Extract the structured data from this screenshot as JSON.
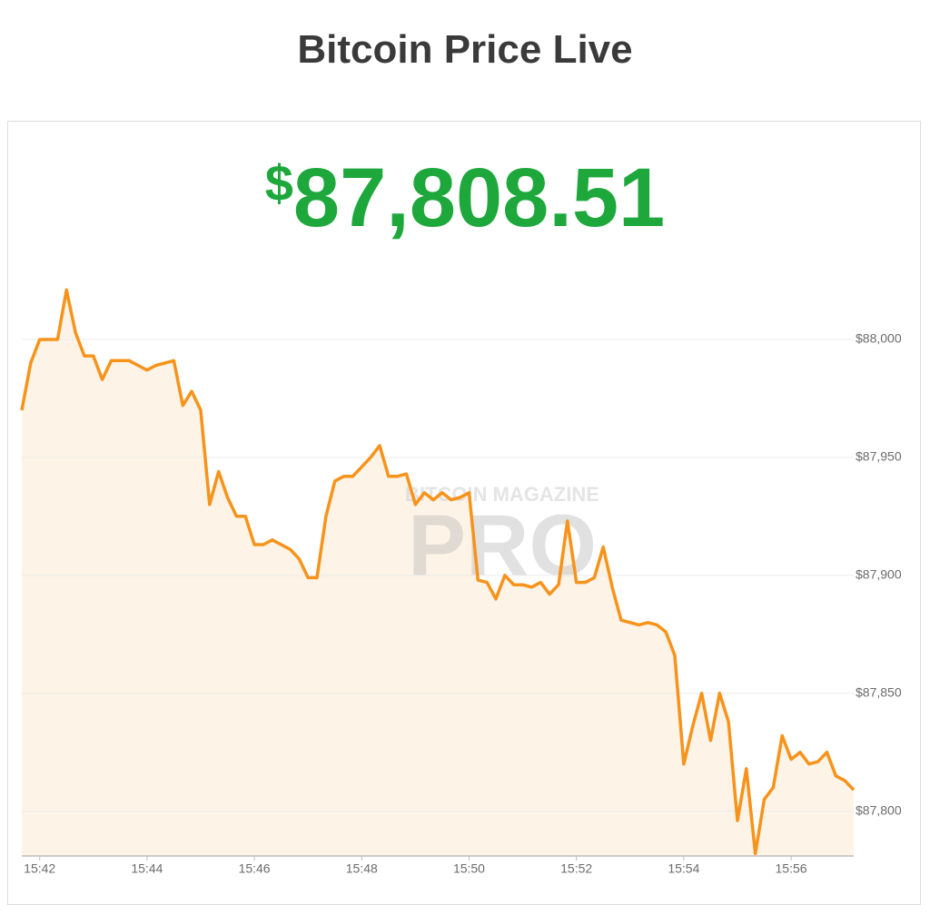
{
  "title": "Bitcoin Price Live",
  "price": {
    "symbol": "$",
    "amount": "87,808.51",
    "color": "#1ea83c"
  },
  "watermark": {
    "top": "BITCOIN MAGAZINE",
    "main": "PRO"
  },
  "chart_data": {
    "type": "area",
    "color": "#f7931a",
    "fill": "#fdf3e7",
    "grid": true,
    "ylim": [
      87781,
      88030
    ],
    "yticks": [
      {
        "value": 87800,
        "label": "$87,800"
      },
      {
        "value": 87850,
        "label": "$87,850"
      },
      {
        "value": 87900,
        "label": "$87,900"
      },
      {
        "value": 87950,
        "label": "$87,950"
      },
      {
        "value": 88000,
        "label": "$88,000"
      }
    ],
    "categories": [
      null,
      null,
      "15:42",
      null,
      null,
      null,
      null,
      null,
      null,
      null,
      null,
      null,
      null,
      null,
      "15:44",
      null,
      null,
      null,
      null,
      null,
      null,
      null,
      null,
      null,
      null,
      null,
      "15:46",
      null,
      null,
      null,
      null,
      null,
      null,
      null,
      null,
      null,
      null,
      null,
      "15:48",
      null,
      null,
      null,
      null,
      null,
      null,
      null,
      null,
      null,
      null,
      null,
      "15:50",
      null,
      null,
      null,
      null,
      null,
      null,
      null,
      null,
      null,
      null,
      null,
      "15:52",
      null,
      null,
      null,
      null,
      null,
      null,
      null,
      null,
      null,
      null,
      null,
      "15:54",
      null,
      null,
      null,
      null,
      null,
      null,
      null,
      null,
      null,
      null,
      null,
      "15:56",
      null,
      null,
      null,
      null,
      null,
      null,
      null
    ],
    "values": [
      87970,
      87990,
      88000,
      88000,
      88000,
      88021,
      88003,
      87993,
      87993,
      87983,
      87991,
      87991,
      87991,
      87989,
      87987,
      87989,
      87990,
      87991,
      87972,
      87978,
      87970,
      87930,
      87944,
      87933,
      87925,
      87925,
      87913,
      87913,
      87915,
      87913,
      87911,
      87907,
      87899,
      87899,
      87925,
      87940,
      87942,
      87942,
      87946,
      87950,
      87955,
      87942,
      87942,
      87943,
      87930,
      87935,
      87932,
      87935,
      87932,
      87933,
      87935,
      87898,
      87897,
      87890,
      87900,
      87896,
      87896,
      87895,
      87897,
      87892,
      87896,
      87923,
      87897,
      87897,
      87899,
      87912,
      87895,
      87881,
      87880,
      87879,
      87880,
      87879,
      87876,
      87866,
      87820,
      87836,
      87850,
      87830,
      87850,
      87838,
      87796,
      87818,
      87782,
      87805,
      87810,
      87832,
      87822,
      87825,
      87820,
      87821,
      87825,
      87815,
      87813,
      87809
    ]
  }
}
